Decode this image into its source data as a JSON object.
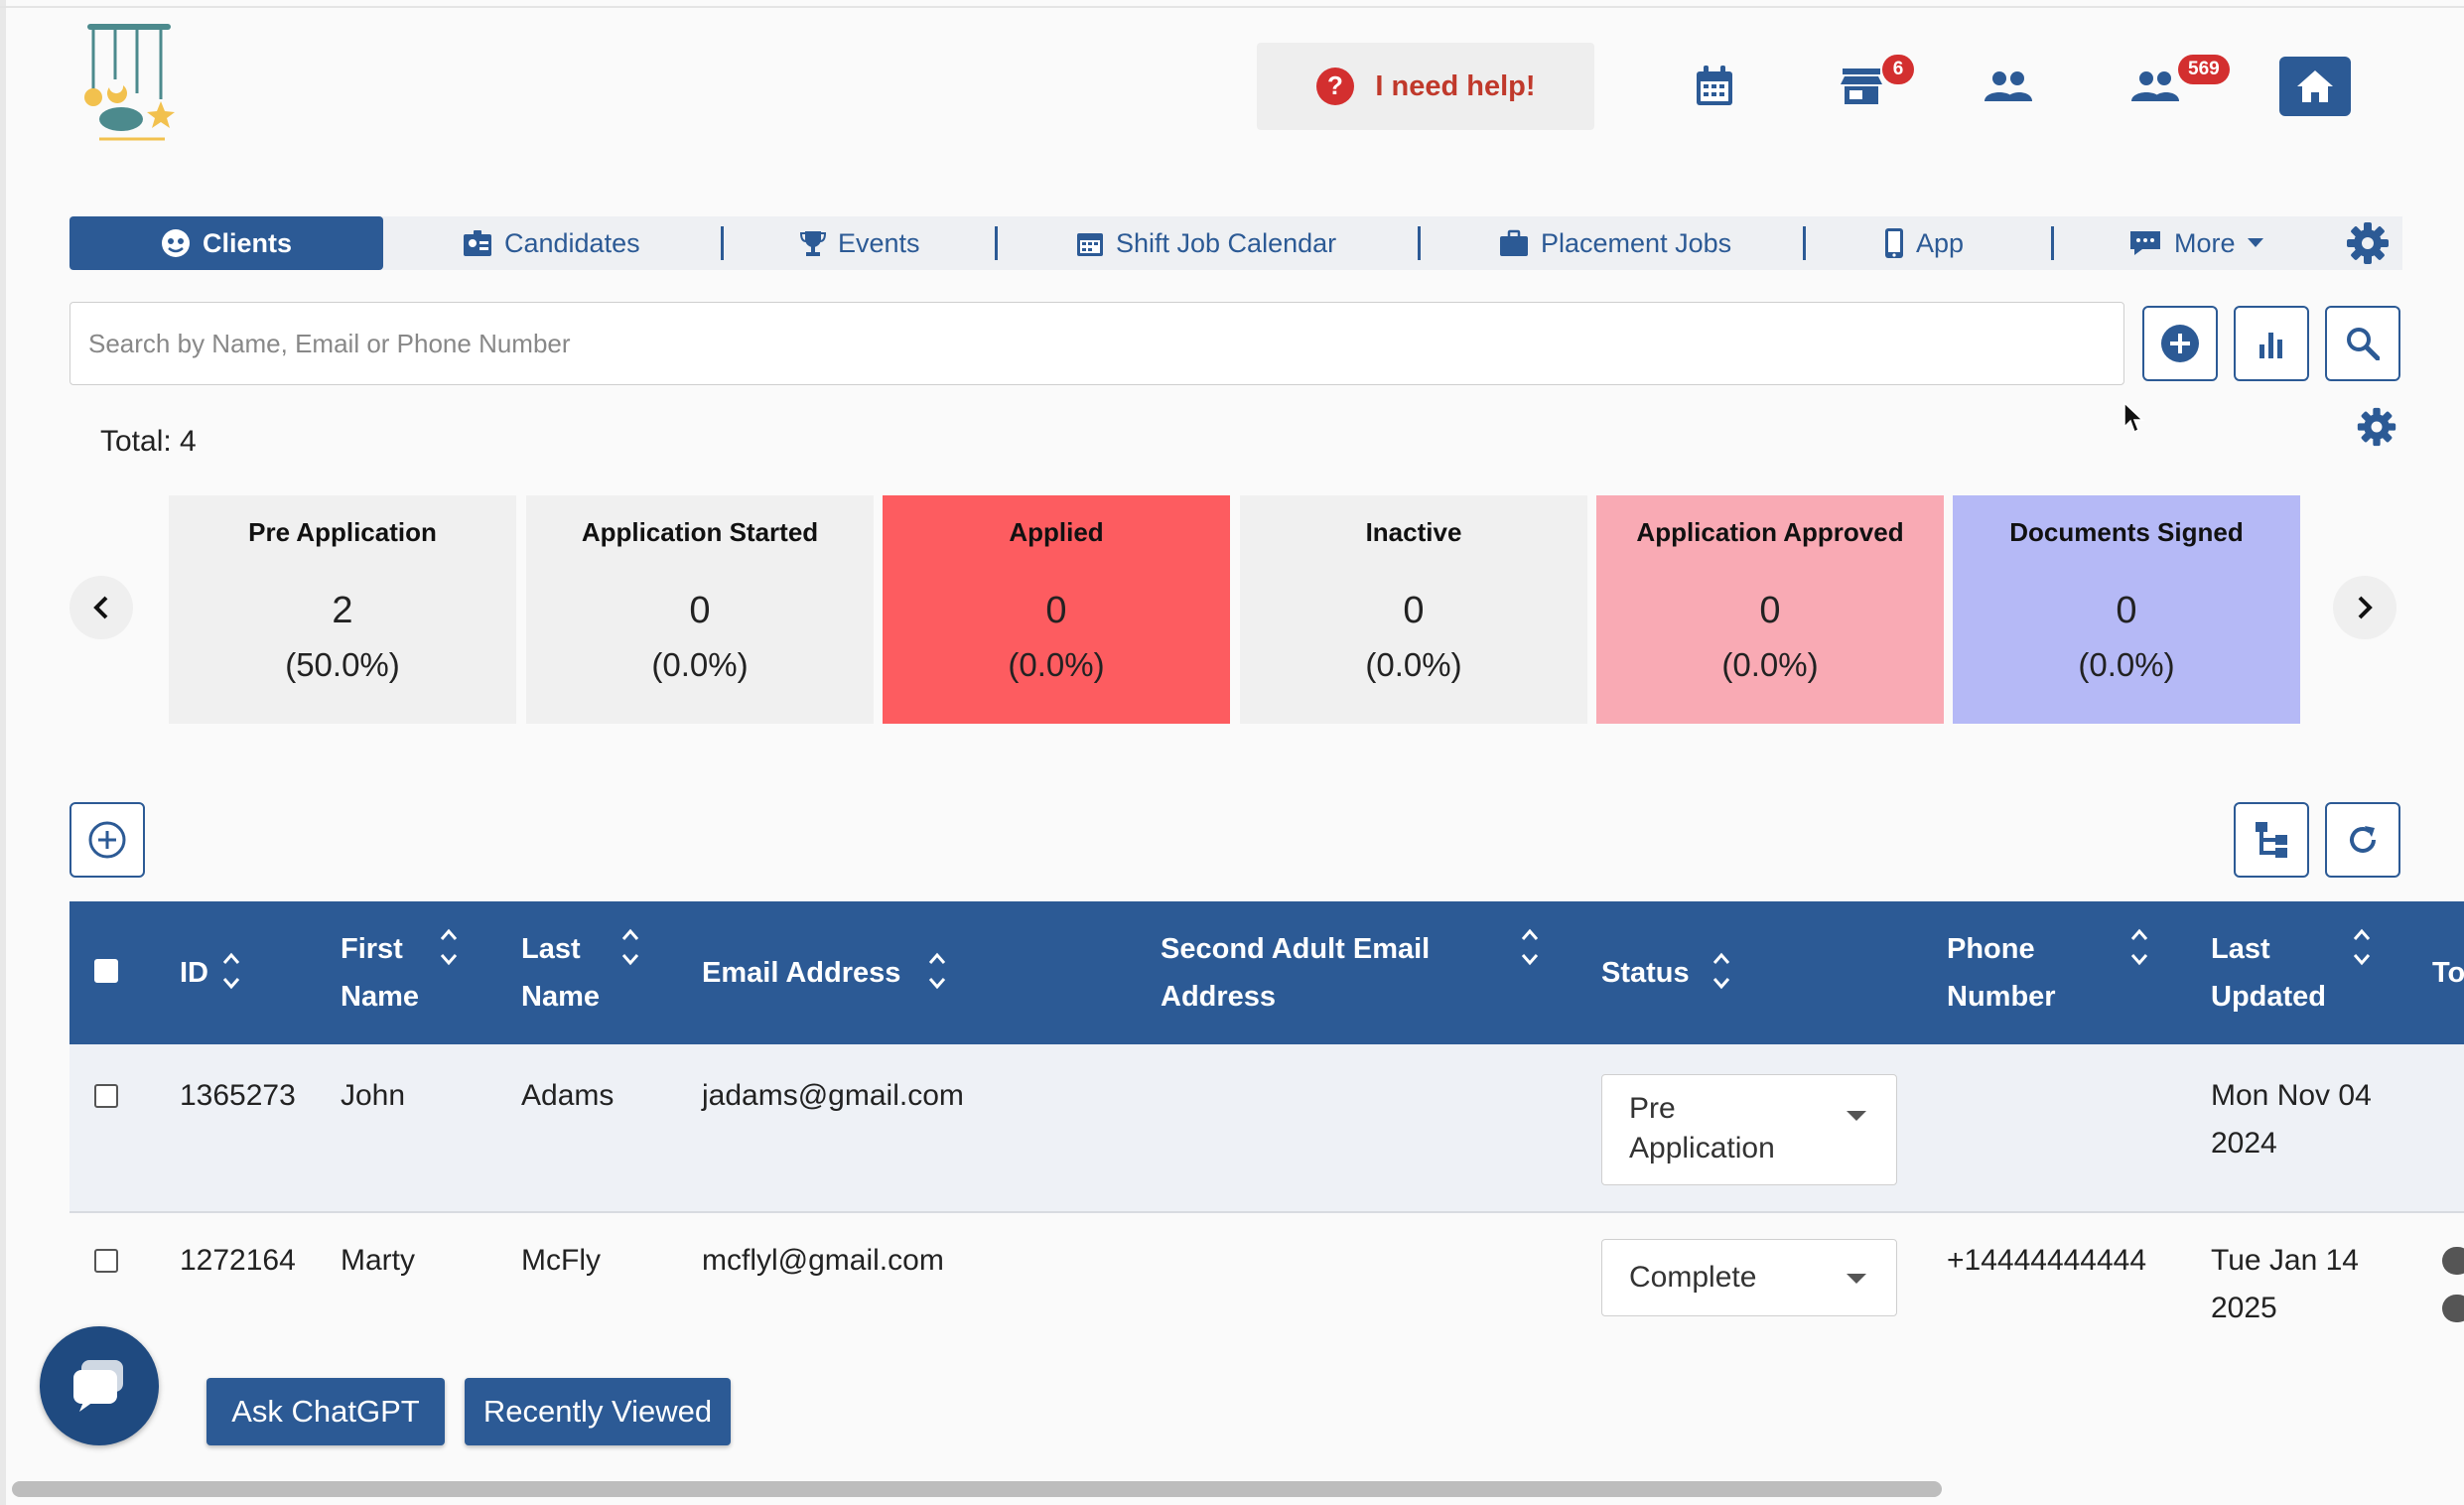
{
  "header": {
    "help_label": "I need help!",
    "store_badge": "6",
    "people_badge": "569",
    "icons": [
      "calendar-icon",
      "store-icon",
      "users-icon",
      "users-icon",
      "home-icon"
    ]
  },
  "nav": {
    "tabs": [
      {
        "label": "Clients",
        "icon": "clients-icon"
      },
      {
        "label": "Candidates",
        "icon": "candidates-icon"
      },
      {
        "label": "Events",
        "icon": "trophy-icon"
      },
      {
        "label": "Shift Job Calendar",
        "icon": "calendar-icon"
      },
      {
        "label": "Placement Jobs",
        "icon": "briefcase-icon"
      },
      {
        "label": "App",
        "icon": "mobile-icon"
      },
      {
        "label": "More",
        "icon": "chat-icon"
      }
    ]
  },
  "search": {
    "placeholder": "Search by Name, Email or Phone Number"
  },
  "summary": {
    "total_label": "Total: 4"
  },
  "status_cards": [
    {
      "label": "Pre Application",
      "count": "2",
      "percent": "(50.0%)",
      "color": "#f0f0f0"
    },
    {
      "label": "Application Started",
      "count": "0",
      "percent": "(0.0%)",
      "color": "#f0f0f0"
    },
    {
      "label": "Applied",
      "count": "0",
      "percent": "(0.0%)",
      "color": "#fd5c60"
    },
    {
      "label": "Inactive",
      "count": "0",
      "percent": "(0.0%)",
      "color": "#f0f0f0"
    },
    {
      "label": "Application Approved",
      "count": "0",
      "percent": "(0.0%)",
      "color": "#f9aab4"
    },
    {
      "label": "Documents Signed",
      "count": "0",
      "percent": "(0.0%)",
      "color": "#b5b9f6"
    }
  ],
  "table": {
    "columns": {
      "id": "ID",
      "first_name": [
        "First",
        "Name"
      ],
      "last_name": [
        "Last",
        "Name"
      ],
      "email": "Email Address",
      "second_email": [
        "Second Adult Email",
        "Address"
      ],
      "status": "Status",
      "phone": [
        "Phone",
        "Number"
      ],
      "last_updated": [
        "Last",
        "Updated"
      ],
      "next": "To"
    },
    "rows": [
      {
        "id": "1365273",
        "first_name": "John",
        "last_name": "Adams",
        "email": "jadams@gmail.com",
        "second_email": "",
        "status": [
          "Pre",
          "Application"
        ],
        "phone": "",
        "last_updated": [
          "Mon Nov 04",
          "2024"
        ]
      },
      {
        "id": "1272164",
        "first_name": "Marty",
        "last_name": "McFly",
        "email": "mcflyl@gmail.com",
        "second_email": "",
        "status": [
          "Complete"
        ],
        "phone": "+14444444444",
        "last_updated": [
          "Tue Jan 14",
          "2025"
        ]
      }
    ]
  },
  "footer": {
    "ask_chatgpt_label": "Ask ChatGPT",
    "recently_viewed_label": "Recently Viewed"
  },
  "colors": {
    "primary": "#2c5a95",
    "help_red": "#c0392b",
    "badge_red": "#d32f2f"
  }
}
